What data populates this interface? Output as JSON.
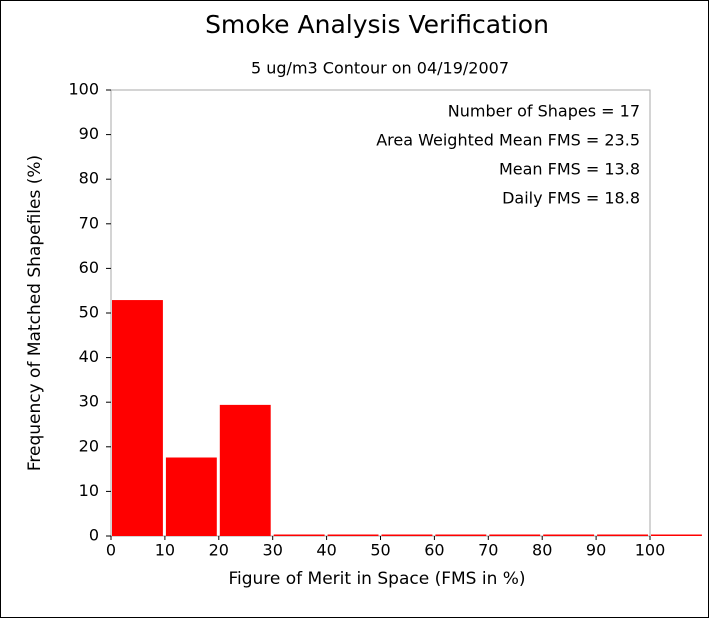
{
  "chart_data": {
    "type": "histogram",
    "title": "Smoke Analysis Verification",
    "subtitle": "5 ug/m3 Contour on 04/19/2007",
    "xlabel": "Figure of Merit in Space (FMS in %)",
    "ylabel": "Frequency of Matched Shapefiles (%)",
    "bins": [
      0,
      10,
      20,
      30,
      40,
      50,
      60,
      70,
      80,
      90,
      100,
      110
    ],
    "values": [
      52.9,
      17.6,
      29.4,
      0,
      0,
      0,
      0,
      0,
      0,
      0,
      0
    ],
    "color": "#ff0000",
    "xlim": [
      0,
      100
    ],
    "ylim": [
      0,
      100
    ],
    "xticks": [
      0,
      10,
      20,
      30,
      40,
      50,
      60,
      70,
      80,
      90,
      100
    ],
    "yticks": [
      0,
      10,
      20,
      30,
      40,
      50,
      60,
      70,
      80,
      90,
      100
    ],
    "annotations": [
      "Number of Shapes = 17",
      "Area Weighted Mean FMS = 23.5",
      "Mean FMS = 13.8",
      "Daily FMS = 18.8"
    ]
  }
}
